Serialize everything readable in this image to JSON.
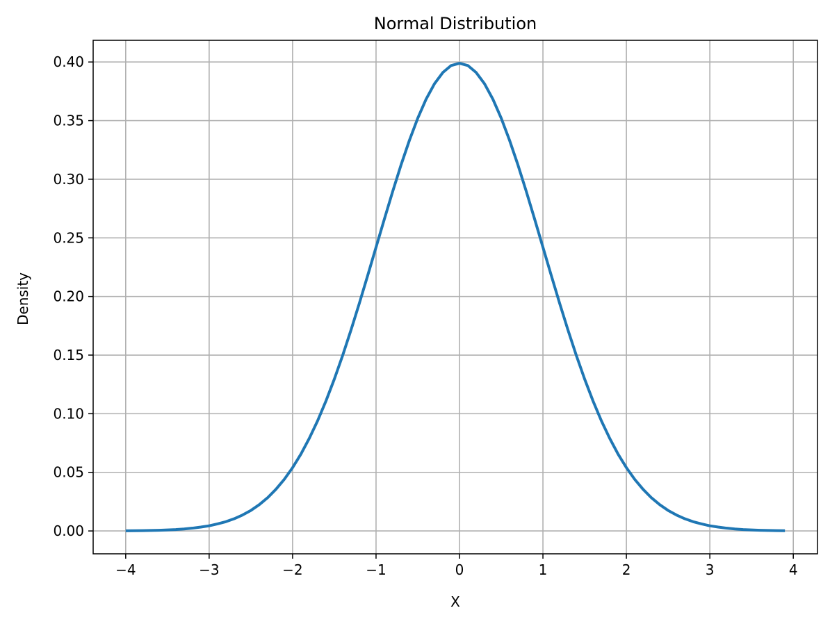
{
  "chart_data": {
    "type": "line",
    "title": "Normal Distribution",
    "xlabel": "X",
    "ylabel": "Density",
    "xlim": [
      -4.39,
      4.29
    ],
    "ylim": [
      -0.0195,
      0.4185
    ],
    "xticks": [
      -4,
      -3,
      -2,
      -1,
      0,
      1,
      2,
      3,
      4
    ],
    "xtick_labels": [
      "−4",
      "−3",
      "−2",
      "−1",
      "0",
      "1",
      "2",
      "3",
      "4"
    ],
    "yticks": [
      0.0,
      0.05,
      0.1,
      0.15,
      0.2,
      0.25,
      0.3,
      0.35,
      0.4
    ],
    "ytick_labels": [
      "0.00",
      "0.05",
      "0.10",
      "0.15",
      "0.20",
      "0.25",
      "0.30",
      "0.35",
      "0.40"
    ],
    "grid": true,
    "series": [
      {
        "color": "#1f77b4",
        "x": [
          -4.0,
          -3.9,
          -3.8,
          -3.7,
          -3.6,
          -3.5,
          -3.4,
          -3.3,
          -3.2,
          -3.1,
          -3.0,
          -2.9,
          -2.8,
          -2.7,
          -2.6,
          -2.5,
          -2.4,
          -2.3,
          -2.2,
          -2.1,
          -2.0,
          -1.9,
          -1.8,
          -1.7,
          -1.6,
          -1.5,
          -1.4,
          -1.3,
          -1.2,
          -1.1,
          -1.0,
          -0.9,
          -0.8,
          -0.7,
          -0.6,
          -0.5,
          -0.4,
          -0.3,
          -0.2,
          -0.1,
          0.0,
          0.1,
          0.2,
          0.3,
          0.4,
          0.5,
          0.6,
          0.7,
          0.8,
          0.9,
          1.0,
          1.1,
          1.2,
          1.3,
          1.4,
          1.5,
          1.6,
          1.7,
          1.8,
          1.9,
          2.0,
          2.1,
          2.2,
          2.3,
          2.4,
          2.5,
          2.6,
          2.7,
          2.8,
          2.9,
          3.0,
          3.1,
          3.2,
          3.3,
          3.4,
          3.5,
          3.6,
          3.7,
          3.8,
          3.9
        ],
        "y": [
          0.0001,
          0.0002,
          0.0003,
          0.0004,
          0.0006,
          0.0009,
          0.0012,
          0.0017,
          0.0024,
          0.0033,
          0.0044,
          0.006,
          0.0079,
          0.0104,
          0.0136,
          0.0175,
          0.0224,
          0.0283,
          0.0355,
          0.044,
          0.054,
          0.0656,
          0.079,
          0.094,
          0.1109,
          0.1295,
          0.1497,
          0.1714,
          0.1942,
          0.2179,
          0.242,
          0.2661,
          0.2897,
          0.3123,
          0.3332,
          0.3521,
          0.3683,
          0.3814,
          0.391,
          0.397,
          0.3989,
          0.397,
          0.391,
          0.3814,
          0.3683,
          0.3521,
          0.3332,
          0.3123,
          0.2897,
          0.2661,
          0.242,
          0.2179,
          0.1942,
          0.1714,
          0.1497,
          0.1295,
          0.1109,
          0.094,
          0.079,
          0.0656,
          0.054,
          0.044,
          0.0355,
          0.0283,
          0.0224,
          0.0175,
          0.0136,
          0.0104,
          0.0079,
          0.006,
          0.0044,
          0.0033,
          0.0024,
          0.0017,
          0.0012,
          0.0009,
          0.0006,
          0.0004,
          0.0003,
          0.0002
        ]
      }
    ]
  }
}
